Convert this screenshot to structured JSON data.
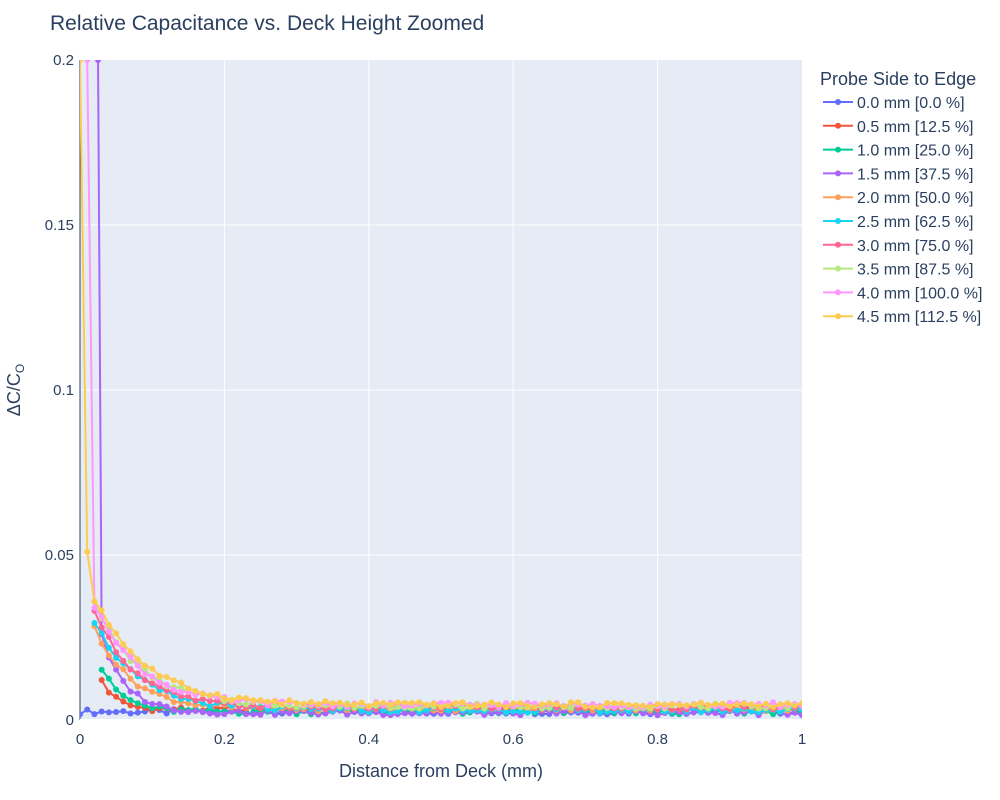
{
  "chart_data": {
    "type": "line",
    "title": "Relative Capacitance vs. Deck Height Zoomed",
    "xlabel": "Distance from Deck (mm)",
    "ylabel_main": "ΔC/C",
    "ylabel_sub": "O",
    "xlim": [
      0,
      1
    ],
    "ylim": [
      0,
      0.2
    ],
    "x_ticks": [
      0,
      0.2,
      0.4,
      0.6,
      0.8,
      1
    ],
    "x_tick_labels": [
      "0",
      "0.2",
      "0.4",
      "0.6",
      "0.8",
      "1"
    ],
    "y_ticks": [
      0,
      0.05,
      0.1,
      0.15,
      0.2
    ],
    "y_tick_labels": [
      "0",
      "0.05",
      "0.1",
      "0.15",
      "0.2"
    ],
    "grid": true,
    "legend_title": "Probe Side to Edge",
    "legend_position": "right",
    "series": [
      {
        "name": "0.0 mm [0.0 %]",
        "color": "#636efa",
        "A": 0.0,
        "tau": 0.01,
        "base": 0.0025,
        "start": 0.0
      },
      {
        "name": "0.5 mm [12.5 %]",
        "color": "#EF553B",
        "A": 0.009,
        "tau": 0.02,
        "base": 0.0032,
        "start": 0.03
      },
      {
        "name": "1.0 mm [25.0 %]",
        "color": "#00cc96",
        "A": 0.013,
        "tau": 0.03,
        "base": 0.0025,
        "start": 0.03
      },
      {
        "name": "1.5 mm [37.5 %]",
        "color": "#ab63fa",
        "A": 0.022,
        "tau": 0.035,
        "base": 0.0022,
        "start": 0.03,
        "spike": [
          [
            0.025,
            0.2
          ],
          [
            0.03,
            0.026
          ]
        ]
      },
      {
        "name": "2.0 mm [50.0 %]",
        "color": "#FFA15A",
        "A": 0.025,
        "tau": 0.05,
        "base": 0.0034,
        "start": 0.02
      },
      {
        "name": "2.5 mm [62.5 %]",
        "color": "#19d3f3",
        "A": 0.027,
        "tau": 0.06,
        "base": 0.003,
        "start": 0.02
      },
      {
        "name": "3.0 mm [75.0 %]",
        "color": "#FF6692",
        "A": 0.03,
        "tau": 0.055,
        "base": 0.0038,
        "start": 0.02
      },
      {
        "name": "3.5 mm [87.5 %]",
        "color": "#B6E880",
        "A": 0.031,
        "tau": 0.065,
        "base": 0.0042,
        "start": 0.02
      },
      {
        "name": "4.0 mm [100.0 %]",
        "color": "#FF97FF",
        "A": 0.032,
        "tau": 0.06,
        "base": 0.0046,
        "start": 0.02,
        "spike": [
          [
            0.01,
            0.2
          ],
          [
            0.02,
            0.034
          ]
        ]
      },
      {
        "name": "4.5 mm [112.5 %]",
        "color": "#FECB52",
        "A": 0.033,
        "tau": 0.07,
        "base": 0.0046,
        "start": 0.02,
        "spike": [
          [
            0.0,
            0.2
          ],
          [
            0.01,
            0.051
          ],
          [
            0.02,
            0.036
          ]
        ]
      }
    ]
  }
}
